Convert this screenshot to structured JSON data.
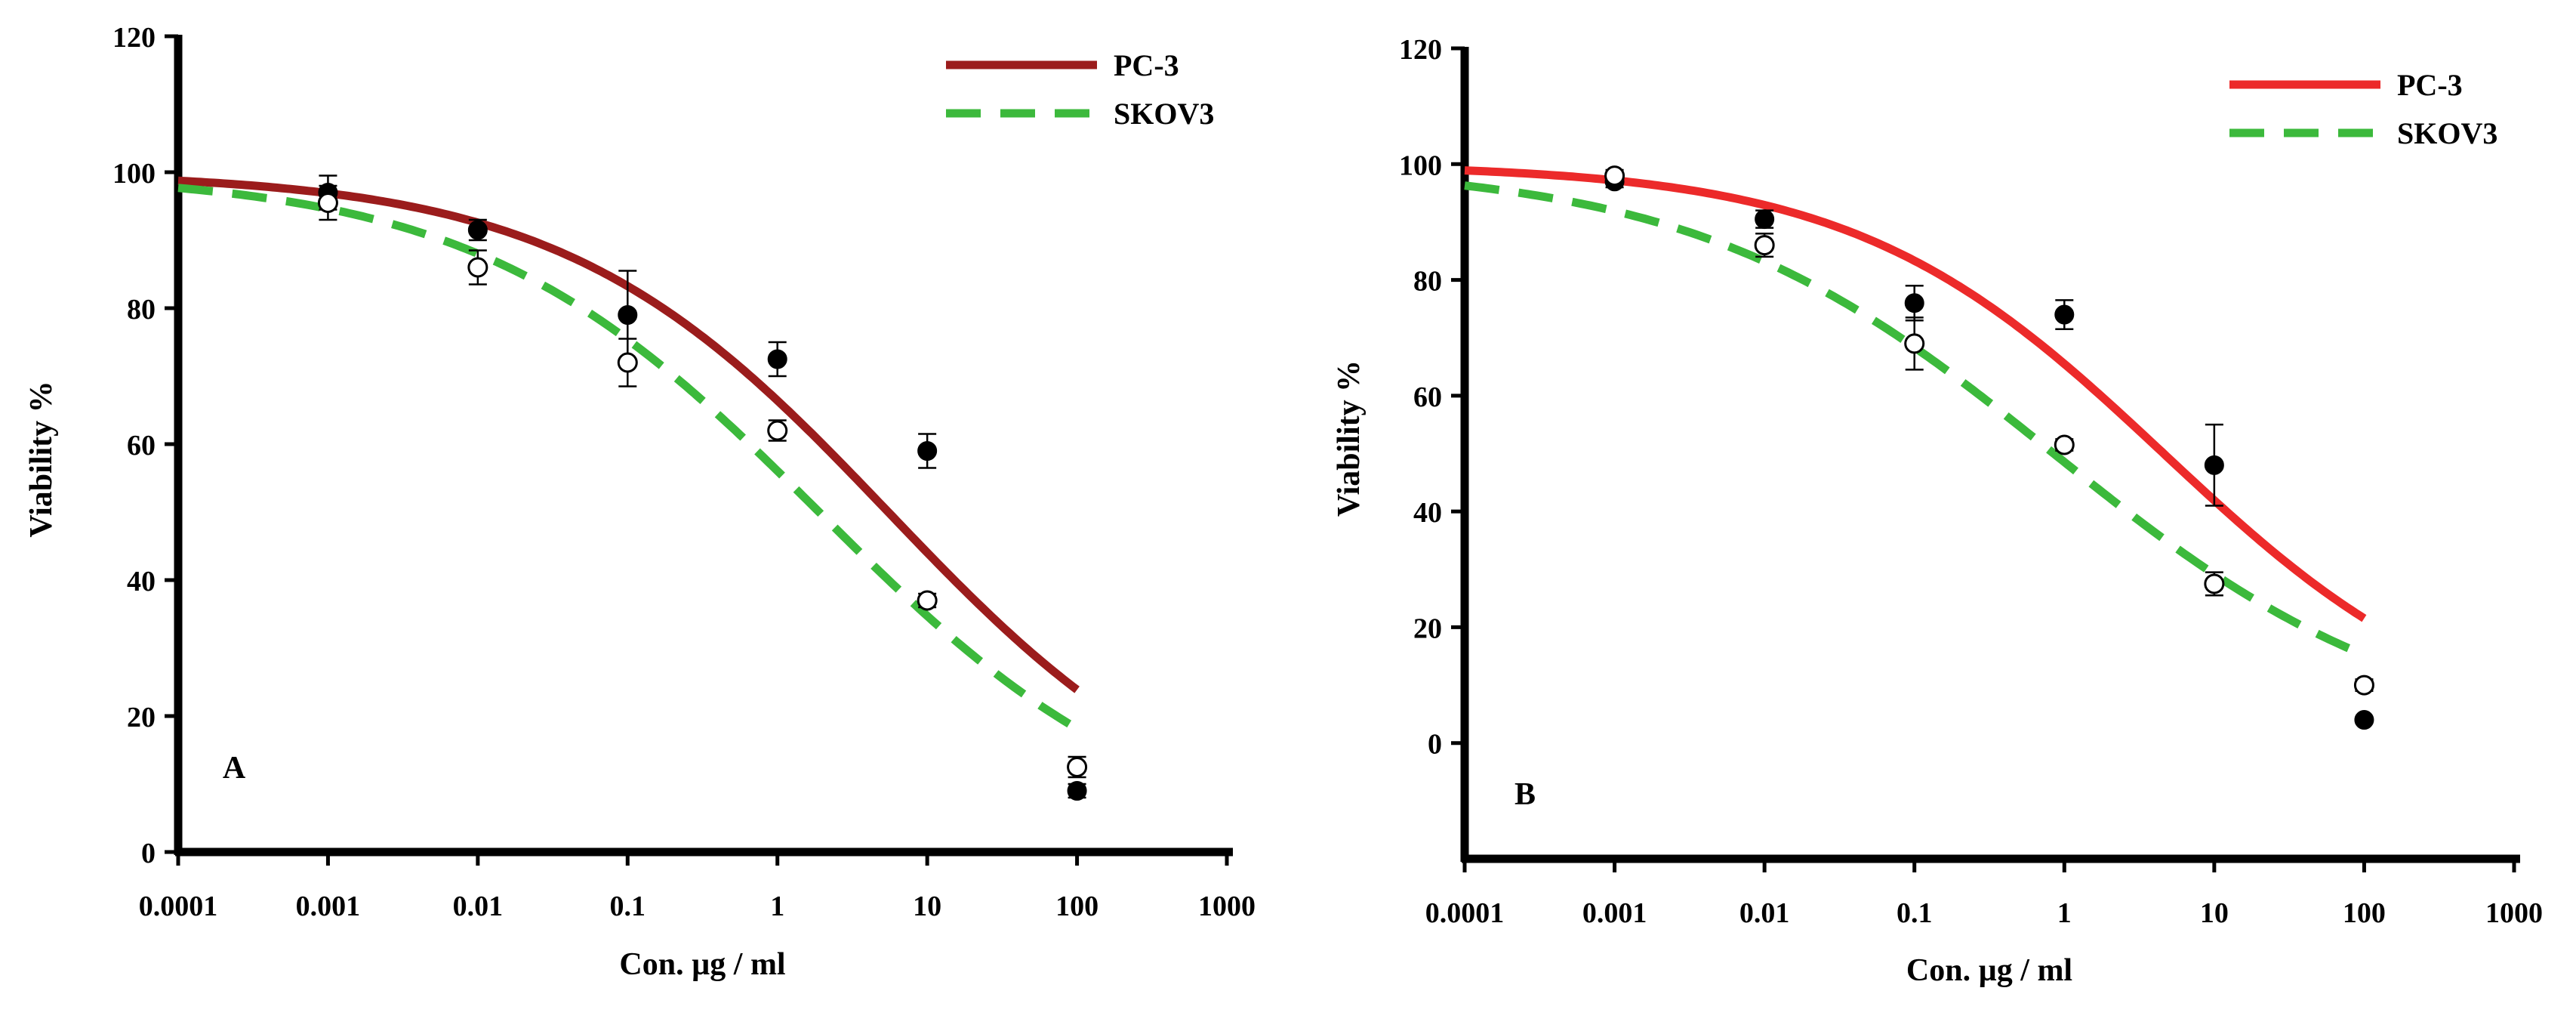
{
  "chart_data": [
    {
      "type": "line",
      "panel_label": "A",
      "xscale": "log",
      "xlim": [
        0.0001,
        1000
      ],
      "ylim": [
        0,
        120
      ],
      "xticks": [
        "0.0001",
        "0.001",
        "0.01",
        "0.1",
        "1",
        "10",
        "100",
        "1000"
      ],
      "yticks": [
        "0",
        "20",
        "40",
        "60",
        "80",
        "100",
        "120"
      ],
      "xlabel": "Con. µg / ml",
      "ylabel": "Viability %",
      "legend_position": "top-right",
      "series": [
        {
          "name": "PC-3",
          "style": "solid",
          "color": "#9b1c1c",
          "marker": "filled-circle",
          "x": [
            0.001,
            0.01,
            0.1,
            1,
            10,
            100
          ],
          "y": [
            97,
            91.5,
            79,
            72.5,
            59,
            9
          ],
          "err": [
            2.5,
            1.5,
            6.5,
            2.5,
            2.5,
            1
          ],
          "fit": {
            "top": 100,
            "ic50": 5.5,
            "hill": 0.4
          }
        },
        {
          "name": "SKOV3",
          "style": "dashed",
          "color": "#3cb93c",
          "marker": "open-circle",
          "x": [
            0.001,
            0.01,
            0.1,
            1,
            10,
            100
          ],
          "y": [
            95.5,
            86,
            72,
            62,
            37,
            12.5
          ],
          "err": [
            2.5,
            2.5,
            3.5,
            1.5,
            1,
            1.5
          ],
          "fit": {
            "top": 100,
            "ic50": 1.9,
            "hill": 0.38
          }
        }
      ]
    },
    {
      "type": "line",
      "panel_label": "B",
      "xscale": "log",
      "xlim": [
        0.0001,
        1000
      ],
      "ylim": [
        -20,
        120
      ],
      "xticks": [
        "0.0001",
        "0.001",
        "0.01",
        "0.1",
        "1",
        "10",
        "100",
        "1000"
      ],
      "yticks": [
        "0",
        "20",
        "40",
        "60",
        "80",
        "100",
        "120"
      ],
      "xlabel": "Con. µg / ml",
      "ylabel": "Viability %",
      "legend_position": "top-right",
      "series": [
        {
          "name": "PC-3",
          "style": "solid",
          "color": "#ec2a2a",
          "marker": "filled-circle",
          "x": [
            0.001,
            0.01,
            0.1,
            1,
            10,
            100
          ],
          "y": [
            97,
            90.5,
            76,
            74,
            48,
            4
          ],
          "err": [
            1,
            1.5,
            3,
            2.5,
            7,
            0.5
          ],
          "fit": {
            "top": 100,
            "ic50": 4.6,
            "hill": 0.42
          }
        },
        {
          "name": "SKOV3",
          "style": "dashed",
          "color": "#3cb93c",
          "marker": "open-circle",
          "x": [
            0.001,
            0.01,
            0.1,
            1,
            10,
            100
          ],
          "y": [
            98,
            86,
            69,
            51.5,
            27.5,
            10
          ],
          "err": [
            1,
            2,
            4.5,
            1,
            2,
            1
          ],
          "fit": {
            "top": 100,
            "ic50": 0.85,
            "hill": 0.36
          }
        }
      ]
    }
  ]
}
